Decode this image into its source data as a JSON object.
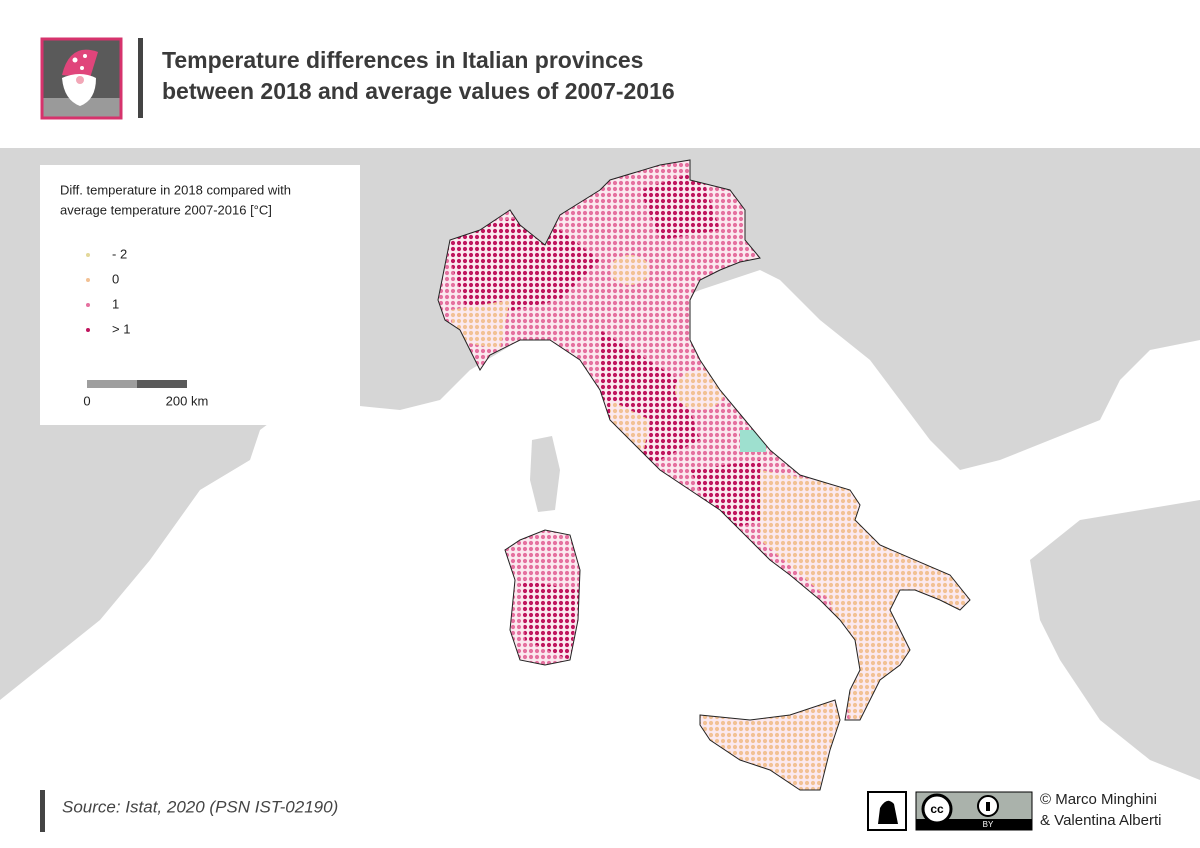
{
  "header": {
    "title": [
      "Temperature differences in Italian provinces",
      "between 2018 and average values of 2007-2016"
    ]
  },
  "legend": {
    "title": [
      "Diff. temperature in 2018 compared with",
      "average temperature 2007-2016 [°C]"
    ],
    "items": [
      {
        "label": "- 2",
        "color": "#e3d89a"
      },
      {
        "label": "0",
        "color": "#f2c194"
      },
      {
        "label": "1",
        "color": "#e5709f"
      },
      {
        "label": "> 1",
        "color": "#c0155e"
      }
    ]
  },
  "scale": {
    "labels": [
      "0",
      "200 km"
    ]
  },
  "footer": {
    "source": "Source:  Istat, 2020 (PSN IST-02190)",
    "license": "BY",
    "credits": [
      "© Marco Minghini",
      "& Valentina Alberti"
    ]
  }
}
